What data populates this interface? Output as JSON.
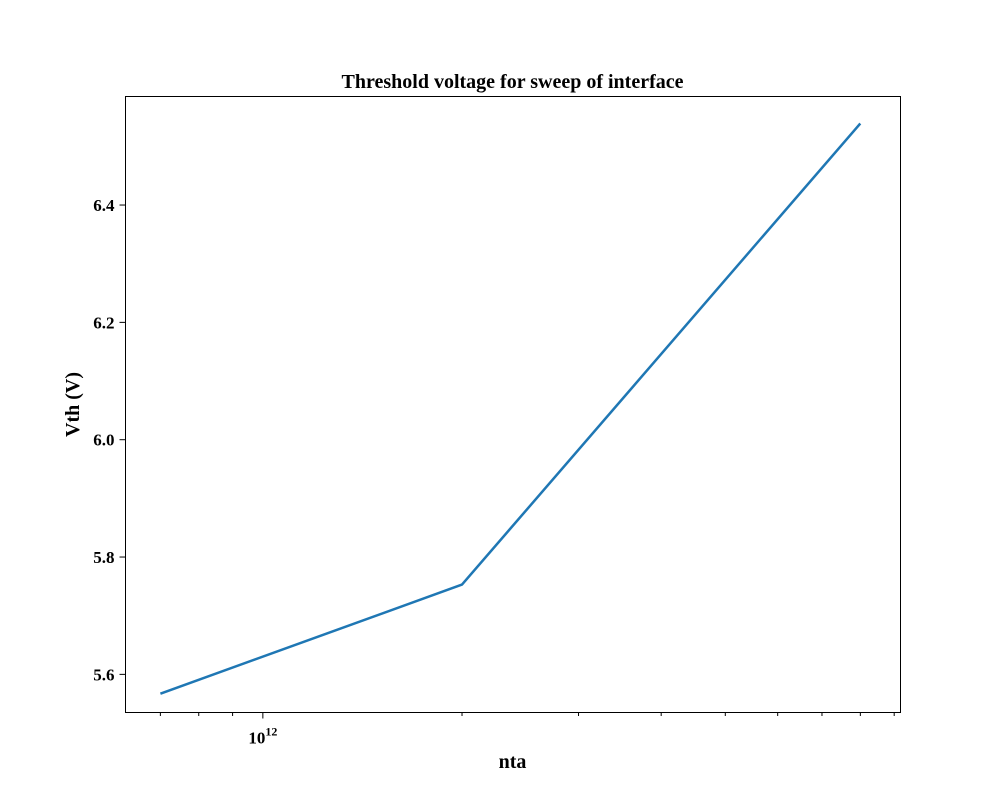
{
  "chart_data": {
    "type": "line",
    "title": "Threshold voltage for sweep of interface",
    "xlabel": "nta",
    "ylabel": "Vth (V)",
    "xscale": "log",
    "xlim": [
      620000000000.0,
      9200000000000.0
    ],
    "ylim": [
      5.535,
      6.585
    ],
    "x_major_ticks": [
      {
        "value": 1000000000000.0,
        "base": "10",
        "exponent": "12"
      }
    ],
    "x_minor_ticks": [
      700000000000.0,
      800000000000.0,
      900000000000.0,
      2000000000000.0,
      3000000000000.0,
      4000000000000.0,
      5000000000000.0,
      6000000000000.0,
      7000000000000.0,
      8000000000000.0,
      9000000000000.0
    ],
    "y_ticks": [
      {
        "value": 5.6,
        "label": "5.6"
      },
      {
        "value": 5.8,
        "label": "5.8"
      },
      {
        "value": 6.0,
        "label": "6.0"
      },
      {
        "value": 6.2,
        "label": "6.2"
      },
      {
        "value": 6.4,
        "label": "6.4"
      }
    ],
    "grid": false,
    "series": [
      {
        "color": "#1f77b4",
        "x": [
          700000000000.0,
          2000000000000.0,
          8000000000000.0
        ],
        "y": [
          5.567,
          5.753,
          6.539
        ]
      }
    ]
  }
}
